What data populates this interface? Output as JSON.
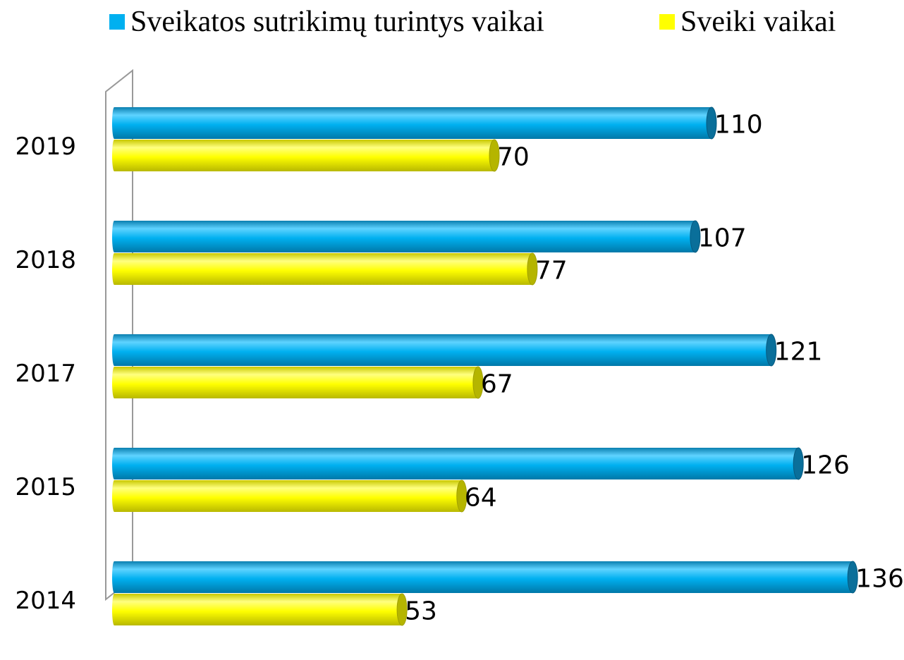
{
  "chart_data": {
    "type": "bar",
    "orientation": "horizontal",
    "categories": [
      "2019",
      "2018",
      "2017",
      "2015",
      "2014"
    ],
    "series": [
      {
        "name": "Sveikatos sutrikimų turintys vaikai",
        "color": "#00b0f0",
        "values": [
          110,
          107,
          121,
          126,
          136
        ]
      },
      {
        "name": "Sveiki vaikai",
        "color": "#ffff00",
        "values": [
          70,
          77,
          67,
          64,
          53
        ]
      }
    ],
    "legend": "top"
  }
}
